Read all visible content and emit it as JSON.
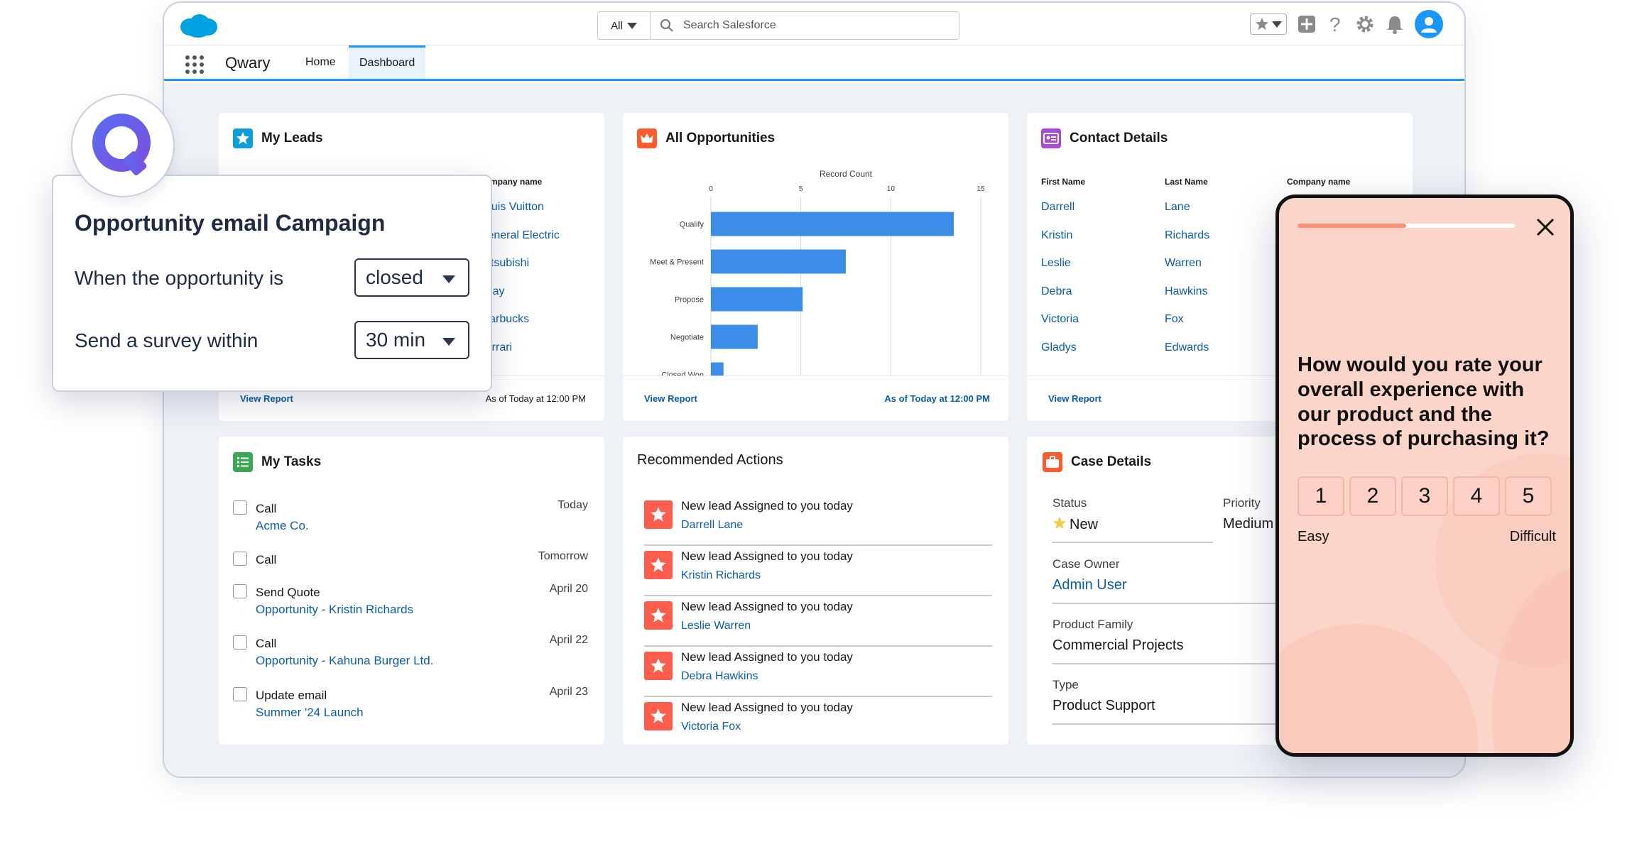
{
  "header": {
    "search_scope": "All",
    "search_placeholder": "Search Salesforce"
  },
  "nav": {
    "app_name": "Qwary",
    "tabs": [
      "Home",
      "Dashboard"
    ],
    "active_tab": "Dashboard"
  },
  "my_leads": {
    "title": "My Leads",
    "column_header": "Company name",
    "companies": [
      "Louis Vuitton",
      "General Electric",
      "Mitsubishi",
      "Ebay",
      "Starbucks",
      "Ferrari"
    ],
    "footer_link": "View Report",
    "footer_note": "As of Today at 12:00 PM"
  },
  "opportunities": {
    "title": "All Opportunities",
    "footer_link": "View Report",
    "footer_note": "As of Today at 12:00 PM"
  },
  "chart_data": {
    "type": "bar",
    "orientation": "horizontal",
    "xlabel": "Record Count",
    "ticks": [
      0,
      5,
      10,
      15
    ],
    "xlim": [
      0,
      15
    ],
    "categories": [
      "Qualify",
      "Meet & Present",
      "Propose",
      "Negotiate",
      "Closed Won"
    ],
    "values": [
      13.5,
      7.5,
      5.1,
      2.6,
      0.7
    ],
    "color": "#3b8de8",
    "grid": true
  },
  "contacts": {
    "title": "Contact Details",
    "headers": [
      "First Name",
      "Last Name",
      "Company name"
    ],
    "rows": [
      [
        "Darrell",
        "Lane"
      ],
      [
        "Kristin",
        "Richards"
      ],
      [
        "Leslie",
        "Warren"
      ],
      [
        "Debra",
        "Hawkins"
      ],
      [
        "Victoria",
        "Fox"
      ],
      [
        "Gladys",
        "Edwards"
      ]
    ],
    "footer_link": "View Report"
  },
  "tasks": {
    "title": "My Tasks",
    "items": [
      {
        "label": "Call",
        "sub": "Acme Co.",
        "date": "Today"
      },
      {
        "label": "Call",
        "sub": "",
        "date": "Tomorrow"
      },
      {
        "label": "Send Quote",
        "sub": "Opportunity - Kristin Richards",
        "date": "April 20"
      },
      {
        "label": "Call",
        "sub": "Opportunity - Kahuna Burger Ltd.",
        "date": "April 22"
      },
      {
        "label": "Update email",
        "sub": "Summer '24 Launch",
        "date": "April 23"
      }
    ]
  },
  "recommended": {
    "title": "Recommended Actions",
    "items": [
      {
        "title": "New lead Assigned to you today",
        "name": "Darrell Lane"
      },
      {
        "title": "New lead Assigned to you today",
        "name": "Kristin Richards"
      },
      {
        "title": "New lead Assigned to you today",
        "name": "Leslie Warren"
      },
      {
        "title": "New lead Assigned to you today",
        "name": "Debra Hawkins"
      },
      {
        "title": "New lead Assigned to you today",
        "name": "Victoria Fox"
      }
    ]
  },
  "case": {
    "title": "Case Details",
    "status_label": "Status",
    "status_value": "New",
    "priority_label": "Priority",
    "priority_value": "Medium",
    "owner_label": "Case Owner",
    "owner_value": "Admin User",
    "family_label": "Product Family",
    "family_value": "Commercial Projects",
    "type_label": "Type",
    "type_value": "Product Support"
  },
  "campaign": {
    "title": "Opportunity email Campaign",
    "row1_label": "When the opportunity is",
    "row1_value": "closed",
    "row2_label": "Send a survey within",
    "row2_value": "30 min"
  },
  "survey": {
    "progress": 0.5,
    "question": "How would you rate your overall experience with our product and the process of purchasing it?",
    "ratings": [
      "1",
      "2",
      "3",
      "4",
      "5"
    ],
    "low_label": "Easy",
    "high_label": "Difficult"
  }
}
